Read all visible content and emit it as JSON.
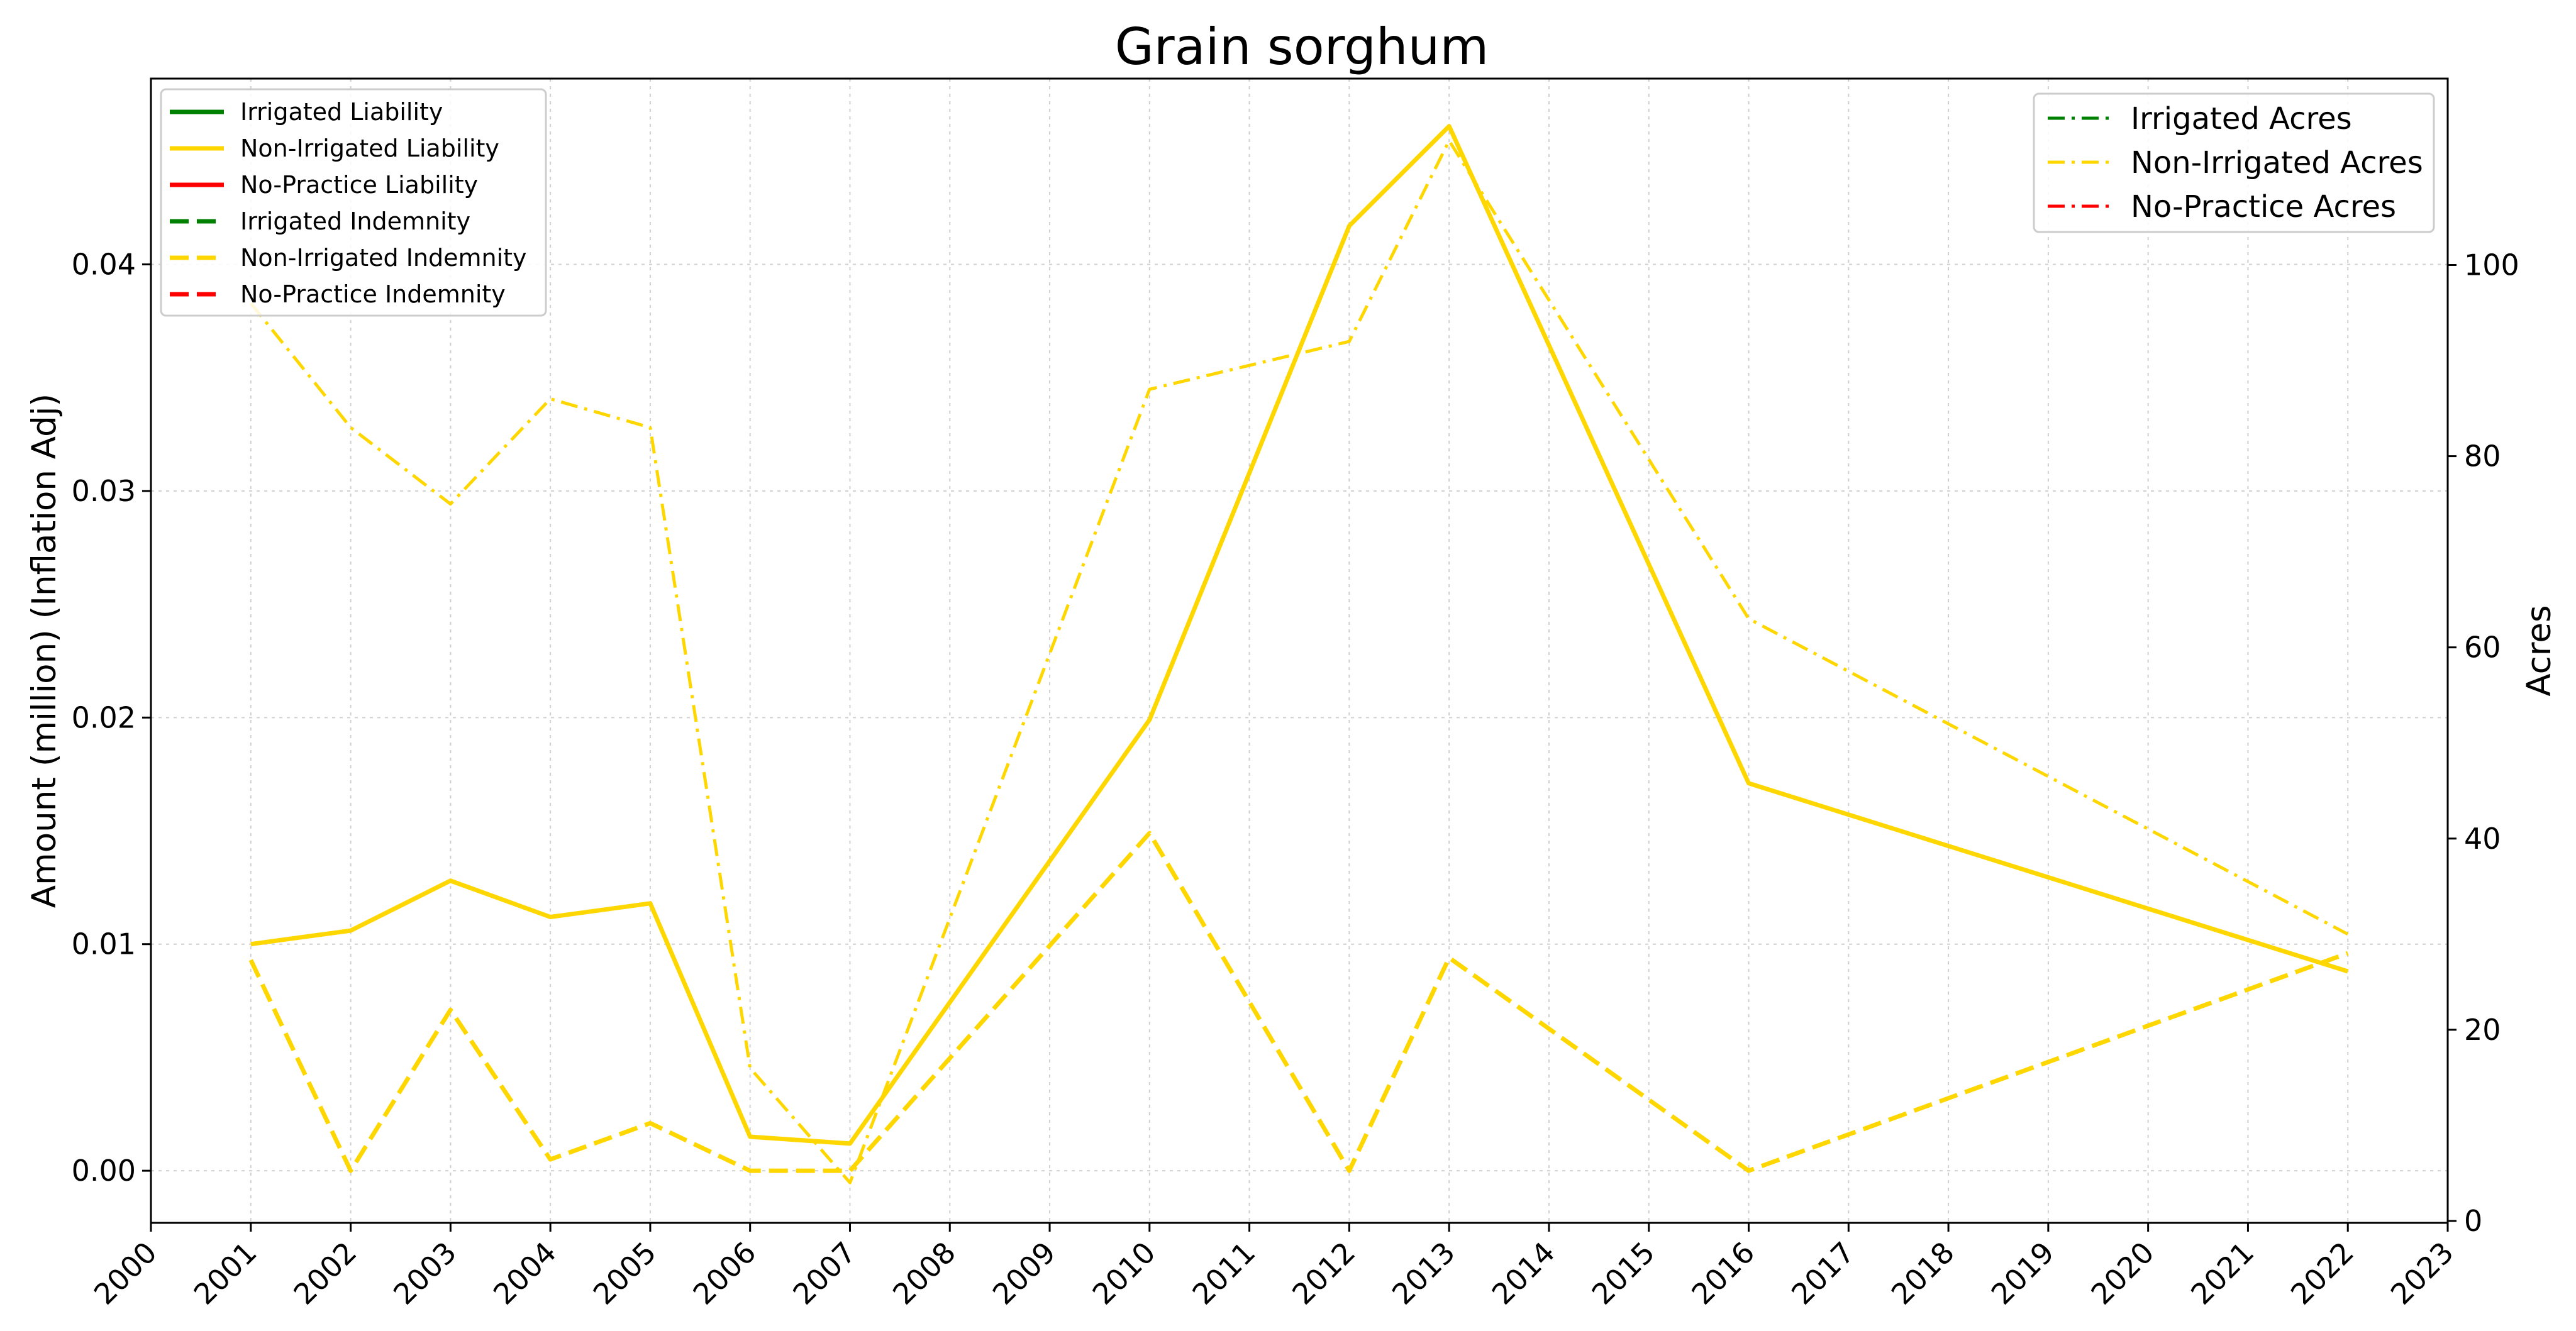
{
  "chart_data": {
    "type": "line",
    "title": "Grain sorghum",
    "xlabel": "",
    "ylabel": "Amount (million) (Inflation Adj)",
    "y2label": "Acres",
    "xlim": [
      2000,
      2023
    ],
    "ylim": [
      -0.0023,
      0.0482
    ],
    "y2lim": [
      -0.2,
      119.5
    ],
    "x_ticks": [
      2000,
      2001,
      2002,
      2003,
      2004,
      2005,
      2006,
      2007,
      2008,
      2009,
      2010,
      2011,
      2012,
      2013,
      2014,
      2015,
      2016,
      2017,
      2018,
      2019,
      2020,
      2021,
      2022,
      2023
    ],
    "y_ticks": [
      "0.00",
      "0.01",
      "0.02",
      "0.03",
      "0.04"
    ],
    "y_tick_values": [
      0,
      0.01,
      0.02,
      0.03,
      0.04
    ],
    "y2_ticks": [
      "0",
      "20",
      "40",
      "60",
      "80",
      "100"
    ],
    "y2_tick_values": [
      0,
      20,
      40,
      60,
      80,
      100
    ],
    "grid": true,
    "legend_left_placement": "top-left",
    "legend_right_placement": "top-right",
    "colors": {
      "irrigated": "#008000",
      "non_irrigated": "#FFD700",
      "no_practice": "#FF0000"
    },
    "series": [
      {
        "name": "Irrigated Liability",
        "axis": "left",
        "style": "solid",
        "color": "#008000",
        "x": [],
        "y": []
      },
      {
        "name": "Non-Irrigated Liability",
        "axis": "left",
        "style": "solid",
        "color": "#FFD700",
        "x": [
          2001,
          2002,
          2003,
          2004,
          2005,
          2006,
          2007,
          2010,
          2012,
          2013,
          2016,
          2022
        ],
        "y": [
          0.01,
          0.0106,
          0.0128,
          0.0112,
          0.0118,
          0.0015,
          0.0012,
          0.0199,
          0.0417,
          0.0461,
          0.0171,
          0.0088
        ]
      },
      {
        "name": "No-Practice Liability",
        "axis": "left",
        "style": "solid",
        "color": "#FF0000",
        "x": [],
        "y": []
      },
      {
        "name": "Irrigated Indemnity",
        "axis": "left",
        "style": "dashed",
        "color": "#008000",
        "x": [],
        "y": []
      },
      {
        "name": "Non-Irrigated Indemnity",
        "axis": "left",
        "style": "dashed",
        "color": "#FFD700",
        "x": [
          2001,
          2002,
          2003,
          2004,
          2005,
          2006,
          2007,
          2010,
          2012,
          2013,
          2016,
          2022
        ],
        "y": [
          0.0093,
          0.0,
          0.0071,
          0.0005,
          0.0021,
          0.0,
          0.0,
          0.0149,
          0.0,
          0.0094,
          0.0,
          0.0096
        ]
      },
      {
        "name": "No-Practice Indemnity",
        "axis": "left",
        "style": "dashed",
        "color": "#FF0000",
        "x": [],
        "y": []
      },
      {
        "name": "Irrigated Acres",
        "axis": "right",
        "style": "dashdot",
        "color": "#008000",
        "x": [],
        "y": []
      },
      {
        "name": "Non-Irrigated Acres",
        "axis": "right",
        "style": "dashdot",
        "color": "#FFD700",
        "x": [
          2001,
          2002,
          2003,
          2004,
          2005,
          2006,
          2007,
          2010,
          2012,
          2013,
          2016,
          2022
        ],
        "y": [
          96,
          83,
          75,
          86,
          83,
          16,
          4,
          87,
          92,
          113,
          63,
          30
        ]
      },
      {
        "name": "No-Practice Acres",
        "axis": "right",
        "style": "dashdot",
        "color": "#FF0000",
        "x": [],
        "y": []
      }
    ]
  }
}
